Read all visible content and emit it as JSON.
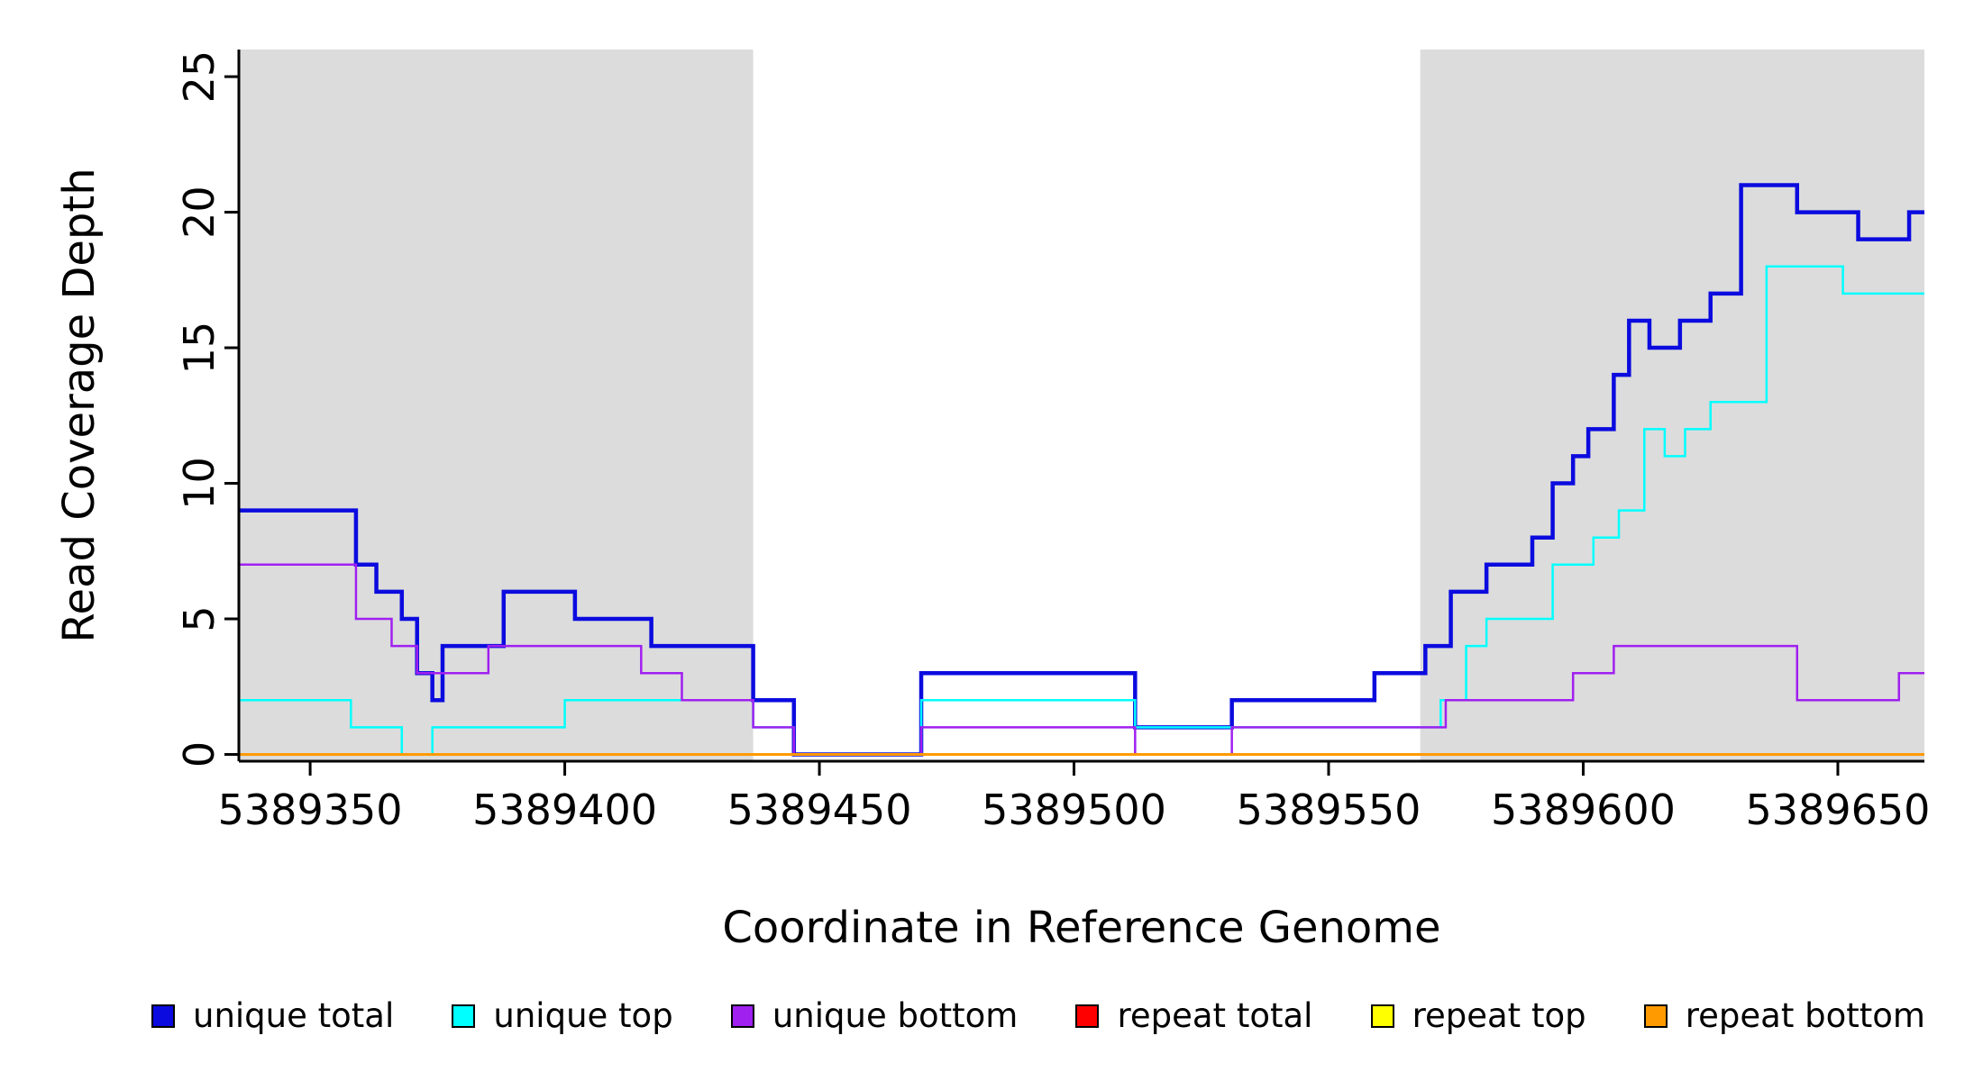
{
  "chart_data": {
    "type": "line",
    "subtype": "step-after-coverage-plot",
    "title": "",
    "xlabel": "Coordinate in Reference Genome",
    "ylabel": "Read Coverage Depth",
    "xlim": [
      5389336,
      5389667
    ],
    "ylim": [
      -0.25,
      26
    ],
    "xticks": [
      5389350,
      5389400,
      5389450,
      5389500,
      5389550,
      5389600,
      5389650
    ],
    "yticks": [
      0,
      5,
      10,
      15,
      20,
      25
    ],
    "grid": false,
    "legend_position": "bottom",
    "shade_color": "#dcdcdc",
    "shaded_regions": [
      [
        5389336,
        5389437
      ],
      [
        5389568,
        5389667
      ]
    ],
    "series": [
      {
        "name": "unique total",
        "color": "#0b0bdf",
        "width": 4.5,
        "points": [
          [
            5389336,
            9
          ],
          [
            5389359,
            7
          ],
          [
            5389363,
            6
          ],
          [
            5389368,
            5
          ],
          [
            5389371,
            3
          ],
          [
            5389374,
            2
          ],
          [
            5389376,
            4
          ],
          [
            5389388,
            6
          ],
          [
            5389402,
            5
          ],
          [
            5389417,
            4
          ],
          [
            5389437,
            2
          ],
          [
            5389445,
            0
          ],
          [
            5389470,
            3
          ],
          [
            5389512,
            1
          ],
          [
            5389531,
            2
          ],
          [
            5389559,
            3
          ],
          [
            5389569,
            4
          ],
          [
            5389574,
            6
          ],
          [
            5389581,
            7
          ],
          [
            5389590,
            8
          ],
          [
            5389594,
            10
          ],
          [
            5389598,
            11
          ],
          [
            5389601,
            12
          ],
          [
            5389606,
            14
          ],
          [
            5389609,
            16
          ],
          [
            5389613,
            15
          ],
          [
            5389619,
            16
          ],
          [
            5389625,
            17
          ],
          [
            5389631,
            21
          ],
          [
            5389642,
            20
          ],
          [
            5389654,
            19
          ],
          [
            5389664,
            20
          ]
        ]
      },
      {
        "name": "unique top",
        "color": "#00ffff",
        "width": 2.5,
        "points": [
          [
            5389336,
            2
          ],
          [
            5389358,
            1
          ],
          [
            5389368,
            0
          ],
          [
            5389374,
            1
          ],
          [
            5389400,
            2
          ],
          [
            5389437,
            1
          ],
          [
            5389445,
            0
          ],
          [
            5389470,
            2
          ],
          [
            5389512,
            1
          ],
          [
            5389572,
            2
          ],
          [
            5389577,
            4
          ],
          [
            5389581,
            5
          ],
          [
            5389594,
            7
          ],
          [
            5389602,
            8
          ],
          [
            5389607,
            9
          ],
          [
            5389612,
            12
          ],
          [
            5389616,
            11
          ],
          [
            5389620,
            12
          ],
          [
            5389625,
            13
          ],
          [
            5389636,
            18
          ],
          [
            5389651,
            17
          ]
        ]
      },
      {
        "name": "unique bottom",
        "color": "#a020f0",
        "width": 2.5,
        "points": [
          [
            5389336,
            7
          ],
          [
            5389359,
            5
          ],
          [
            5389366,
            4
          ],
          [
            5389371,
            3
          ],
          [
            5389385,
            4
          ],
          [
            5389415,
            3
          ],
          [
            5389423,
            2
          ],
          [
            5389437,
            1
          ],
          [
            5389445,
            0
          ],
          [
            5389470,
            1
          ],
          [
            5389512,
            0
          ],
          [
            5389531,
            1
          ],
          [
            5389573,
            2
          ],
          [
            5389598,
            3
          ],
          [
            5389606,
            4
          ],
          [
            5389642,
            2
          ],
          [
            5389662,
            3
          ]
        ]
      },
      {
        "name": "repeat total",
        "color": "#ff0000",
        "width": 2.5,
        "points": [
          [
            5389336,
            0
          ]
        ]
      },
      {
        "name": "repeat top",
        "color": "#ffff00",
        "width": 2.5,
        "points": [
          [
            5389336,
            0
          ]
        ]
      },
      {
        "name": "repeat bottom",
        "color": "#ff9a00",
        "width": 3,
        "points": [
          [
            5389336,
            0
          ]
        ]
      }
    ]
  }
}
